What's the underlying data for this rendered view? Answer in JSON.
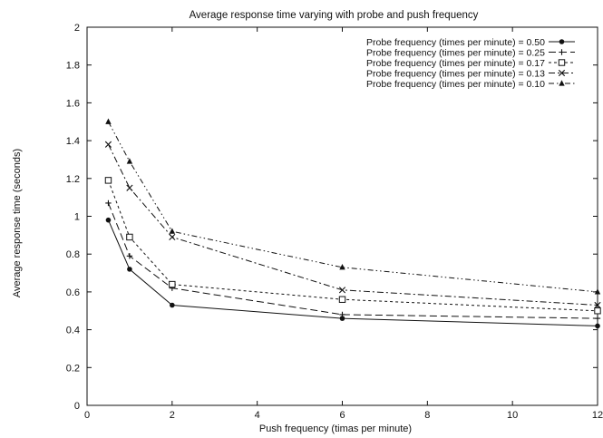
{
  "chart_data": {
    "type": "line",
    "title": "Average response time varying with probe and push frequency",
    "xlabel": "Push frequency (timas per minute)",
    "ylabel": "Average response time (seconds)",
    "xlim": [
      0,
      12
    ],
    "ylim": [
      0,
      2
    ],
    "x_ticks": [
      0,
      2,
      4,
      6,
      8,
      10,
      12
    ],
    "y_ticks": [
      0,
      0.2,
      0.4,
      0.6,
      0.8,
      1,
      1.2,
      1.4,
      1.6,
      1.8,
      2
    ],
    "x_tick_labels": [
      "0",
      "2",
      "4",
      "6",
      "8",
      "10",
      "12"
    ],
    "y_tick_labels": [
      "0",
      "0.2",
      "0.4",
      "0.6",
      "0.8",
      "1",
      "1.2",
      "1.4",
      "1.6",
      "1.8",
      "2"
    ],
    "grid": false,
    "legend_position": "top-right",
    "series": [
      {
        "name": "Probe frequency (times per minute) = 0.50",
        "marker": "filled-circle",
        "dash": "solid",
        "x": [
          0.5,
          1,
          2,
          6,
          12
        ],
        "y": [
          0.98,
          0.72,
          0.53,
          0.46,
          0.42
        ]
      },
      {
        "name": "Probe frequency (times per minute) = 0.25",
        "marker": "plus",
        "dash": "long-dash",
        "x": [
          0.5,
          1,
          2,
          6,
          12
        ],
        "y": [
          1.07,
          0.79,
          0.62,
          0.48,
          0.46
        ]
      },
      {
        "name": "Probe frequency (times per minute) = 0.17",
        "marker": "open-square",
        "dash": "short-dash",
        "x": [
          0.5,
          1,
          2,
          6,
          12
        ],
        "y": [
          1.19,
          0.89,
          0.64,
          0.56,
          0.5
        ]
      },
      {
        "name": "Probe frequency (times per minute) = 0.13",
        "marker": "cross",
        "dash": "dash-dot",
        "x": [
          0.5,
          1,
          2,
          6,
          12
        ],
        "y": [
          1.38,
          1.15,
          0.89,
          0.61,
          0.53
        ]
      },
      {
        "name": "Probe frequency (times per minute) = 0.10",
        "marker": "filled-triangle",
        "dash": "dash-dot-dot",
        "x": [
          0.5,
          1,
          2,
          6,
          12
        ],
        "y": [
          1.5,
          1.29,
          0.92,
          0.73,
          0.6
        ]
      }
    ]
  }
}
